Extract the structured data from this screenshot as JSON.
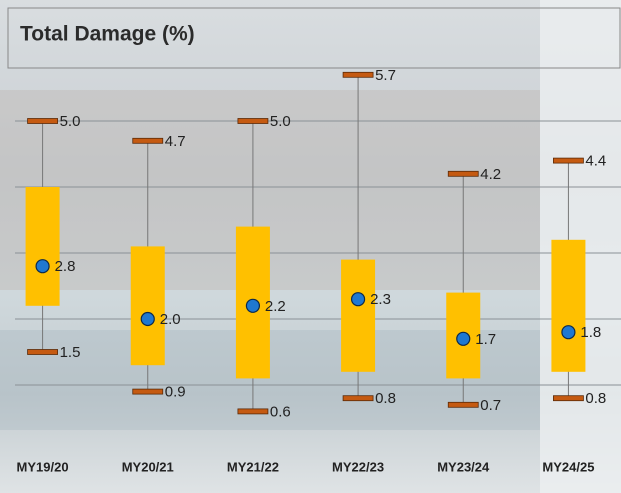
{
  "chart_data": {
    "type": "box",
    "title": "Total Damage (%)",
    "categories": [
      "MY19/20",
      "MY20/21",
      "MY21/22",
      "MY22/23",
      "MY23/24",
      "MY24/25"
    ],
    "max": {
      "values": [
        5.0,
        4.7,
        5.0,
        5.7,
        4.2,
        4.4
      ],
      "value_labels": [
        "5.0",
        "4.7",
        "5.0",
        "5.7",
        "4.2",
        "4.4"
      ],
      "color": "#c55a11"
    },
    "min": {
      "values": [
        1.5,
        0.9,
        0.6,
        0.8,
        0.7,
        0.8
      ],
      "value_labels": [
        "1.5",
        "0.9",
        "0.6",
        "0.8",
        "0.7",
        "0.8"
      ],
      "color": "#c55a11"
    },
    "mean": {
      "values": [
        2.8,
        2.0,
        2.2,
        2.3,
        1.7,
        1.8
      ],
      "value_labels": [
        "2.8",
        "2.0",
        "2.2",
        "2.3",
        "1.7",
        "1.8"
      ],
      "color": "#1f78d1"
    },
    "box_low": {
      "values": [
        2.2,
        1.3,
        1.1,
        1.2,
        1.1,
        1.2
      ]
    },
    "box_high": {
      "values": [
        4.0,
        3.1,
        3.4,
        2.9,
        2.4,
        3.2
      ]
    },
    "box_color": "#ffc000",
    "ylim": [
      -0.5,
      6.5
    ],
    "yticks": [
      1,
      2,
      3,
      4,
      5
    ],
    "grid": true
  }
}
